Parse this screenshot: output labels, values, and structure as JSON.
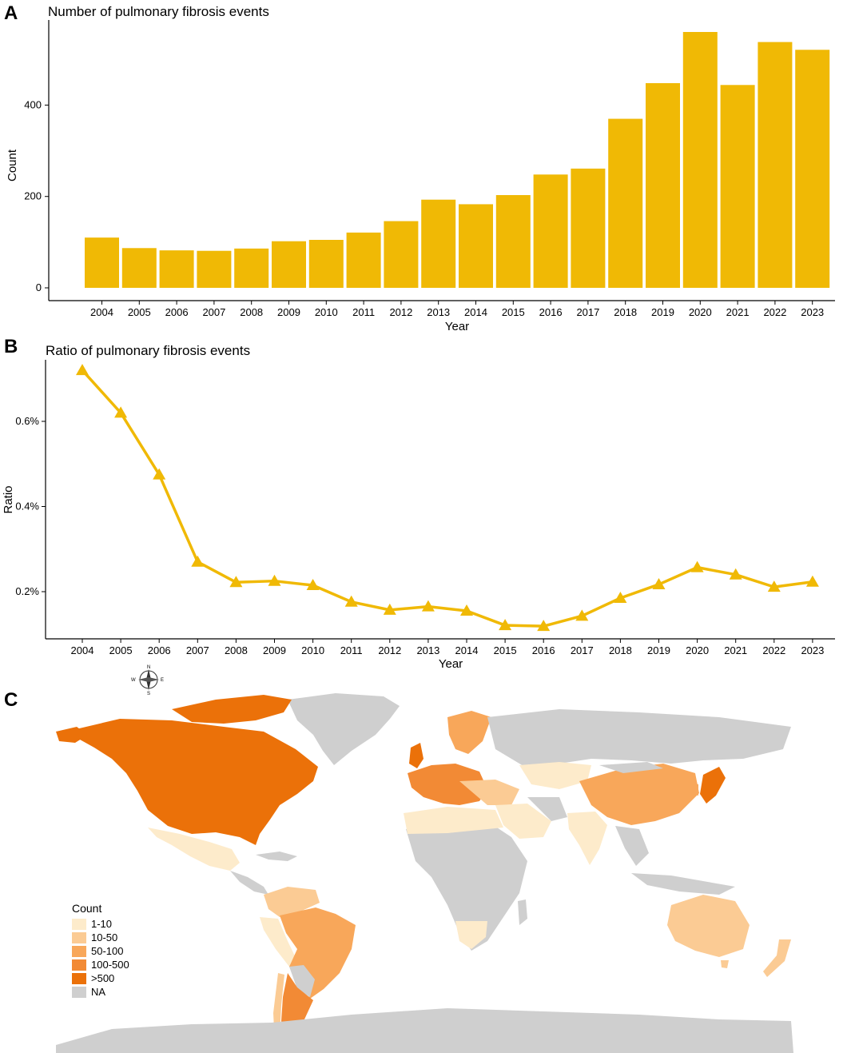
{
  "panels": {
    "a": {
      "letter": "A"
    },
    "b": {
      "letter": "B"
    },
    "c": {
      "letter": "C"
    }
  },
  "chart_data": [
    {
      "type": "bar",
      "title": "Number of pulmonary fibrosis events",
      "xlabel": "Year",
      "ylabel": "Count",
      "categories": [
        "2004",
        "2005",
        "2006",
        "2007",
        "2008",
        "2009",
        "2010",
        "2011",
        "2012",
        "2013",
        "2014",
        "2015",
        "2016",
        "2017",
        "2018",
        "2019",
        "2020",
        "2021",
        "2022",
        "2023"
      ],
      "values": [
        110,
        87,
        82,
        81,
        86,
        102,
        105,
        121,
        146,
        193,
        183,
        203,
        248,
        261,
        370,
        448,
        560,
        444,
        538,
        521
      ],
      "yticks": [
        0,
        200,
        400
      ],
      "ytick_labels": [
        "0",
        "200",
        "400"
      ],
      "ylim": [
        0,
        560
      ],
      "color": "#F0B905",
      "grid": false
    },
    {
      "type": "line",
      "title": "Ratio of pulmonary fibrosis events",
      "xlabel": "Year",
      "ylabel": "Ratio",
      "categories": [
        "2004",
        "2005",
        "2006",
        "2007",
        "2008",
        "2009",
        "2010",
        "2011",
        "2012",
        "2013",
        "2014",
        "2015",
        "2016",
        "2017",
        "2018",
        "2019",
        "2020",
        "2021",
        "2022",
        "2023"
      ],
      "values": [
        0.72,
        0.62,
        0.475,
        0.27,
        0.222,
        0.225,
        0.215,
        0.176,
        0.157,
        0.165,
        0.155,
        0.121,
        0.119,
        0.143,
        0.185,
        0.217,
        0.257,
        0.24,
        0.211,
        0.223
      ],
      "yticks": [
        0.2,
        0.4,
        0.6
      ],
      "ytick_labels": [
        "0.2%",
        "0.4%",
        "0.6%"
      ],
      "ylim": [
        0.1,
        0.72
      ],
      "marker": "triangle",
      "color": "#F0B905",
      "grid": false
    }
  ],
  "map": {
    "legend": {
      "title": "Count",
      "items": [
        {
          "label": "1-10",
          "color": "#FDEBCB"
        },
        {
          "label": "10-50",
          "color": "#FBCB94"
        },
        {
          "label": "50-100",
          "color": "#F8A75A"
        },
        {
          "label": "100-500",
          "color": "#F28A35"
        },
        {
          "label": ">500",
          "color": "#EB7109"
        },
        {
          "label": "NA",
          "color": "#CFCFCF"
        }
      ]
    },
    "compass": {
      "n": "N",
      "s": "S",
      "e": "E",
      "w": "W"
    }
  }
}
